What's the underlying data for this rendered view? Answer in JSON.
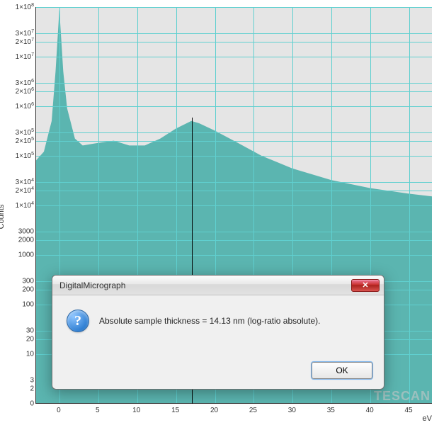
{
  "chart": {
    "type": "area",
    "background_color": "#e5e5e5",
    "fill_color": "#5bb5b0",
    "grid_color": "#60d0d0",
    "axis_color": "#333333",
    "x_label": "eV",
    "y_label": "Counts",
    "x_min": -3,
    "x_max": 48,
    "x_ticks": [
      0,
      5,
      10,
      15,
      20,
      25,
      30,
      35,
      40,
      45
    ],
    "y_scale": "log",
    "y_min": 1,
    "y_max": 100000000.0,
    "y_ticks": [
      {
        "v": 100000000.0,
        "label_html": "1×10<span class='sup'>8</span>"
      },
      {
        "v": 30000000.0,
        "label_html": "3×10<span class='sup'>7</span>"
      },
      {
        "v": 20000000.0,
        "label_html": "2×10<span class='sup'>7</span>"
      },
      {
        "v": 10000000.0,
        "label_html": "1×10<span class='sup'>7</span>"
      },
      {
        "v": 3000000.0,
        "label_html": "3×10<span class='sup'>6</span>"
      },
      {
        "v": 2000000.0,
        "label_html": "2×10<span class='sup'>6</span>"
      },
      {
        "v": 1000000.0,
        "label_html": "1×10<span class='sup'>6</span>"
      },
      {
        "v": 300000.0,
        "label_html": "3×10<span class='sup'>5</span>"
      },
      {
        "v": 200000.0,
        "label_html": "2×10<span class='sup'>5</span>"
      },
      {
        "v": 100000.0,
        "label_html": "1×10<span class='sup'>5</span>"
      },
      {
        "v": 30000.0,
        "label_html": "3×10<span class='sup'>4</span>"
      },
      {
        "v": 20000.0,
        "label_html": "2×10<span class='sup'>4</span>"
      },
      {
        "v": 10000.0,
        "label_html": "1×10<span class='sup'>4</span>"
      },
      {
        "v": 3000,
        "label_html": "3000"
      },
      {
        "v": 2000,
        "label_html": "2000"
      },
      {
        "v": 1000,
        "label_html": "1000"
      },
      {
        "v": 300,
        "label_html": "300"
      },
      {
        "v": 200,
        "label_html": "200"
      },
      {
        "v": 100,
        "label_html": "100"
      },
      {
        "v": 30,
        "label_html": "30"
      },
      {
        "v": 20,
        "label_html": "20"
      },
      {
        "v": 10,
        "label_html": "10"
      },
      {
        "v": 3,
        "label_html": "3"
      },
      {
        "v": 2,
        "label_html": "2"
      },
      {
        "v": 0,
        "label_html": "0"
      }
    ],
    "series": [
      {
        "x": -3,
        "y": 80000.0
      },
      {
        "x": -2,
        "y": 120000.0
      },
      {
        "x": -1,
        "y": 500000.0
      },
      {
        "x": -0.5,
        "y": 5000000.0
      },
      {
        "x": 0,
        "y": 90000000.0
      },
      {
        "x": 0.5,
        "y": 5000000.0
      },
      {
        "x": 1,
        "y": 900000.0
      },
      {
        "x": 2,
        "y": 220000.0
      },
      {
        "x": 3,
        "y": 160000.0
      },
      {
        "x": 5,
        "y": 180000.0
      },
      {
        "x": 7,
        "y": 200000.0
      },
      {
        "x": 9,
        "y": 160000.0
      },
      {
        "x": 11,
        "y": 160000.0
      },
      {
        "x": 13,
        "y": 220000.0
      },
      {
        "x": 15,
        "y": 350000.0
      },
      {
        "x": 17,
        "y": 500000.0
      },
      {
        "x": 18,
        "y": 450000.0
      },
      {
        "x": 20,
        "y": 320000.0
      },
      {
        "x": 23,
        "y": 180000.0
      },
      {
        "x": 26,
        "y": 100000.0
      },
      {
        "x": 30,
        "y": 55000.0
      },
      {
        "x": 35,
        "y": 32000.0
      },
      {
        "x": 40,
        "y": 22000.0
      },
      {
        "x": 45,
        "y": 17000.0
      },
      {
        "x": 48,
        "y": 15000.0
      }
    ],
    "marker_x": 17,
    "watermark": "TESCAN"
  },
  "dialog": {
    "title": "DigitalMicrograph",
    "icon": "?",
    "icon_name": "question-icon",
    "message": "Absolute sample thickness = 14.13 nm (log-ratio absolute).",
    "ok_label": "OK",
    "close_label": "✕"
  }
}
